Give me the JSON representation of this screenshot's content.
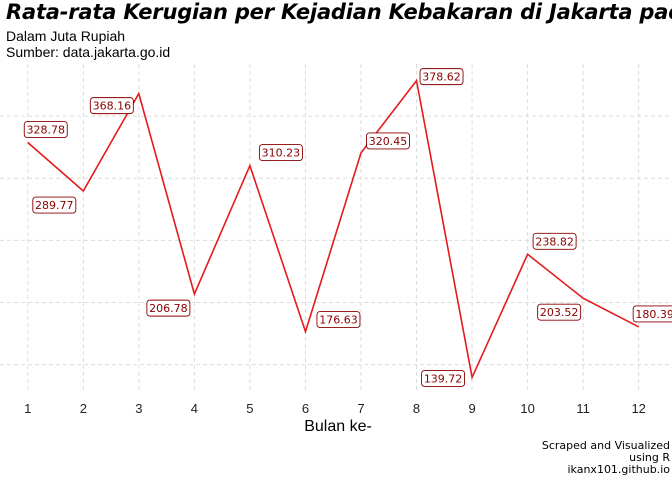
{
  "chart_data": {
    "type": "line",
    "title": "Rata-rata Kerugian per Kejadian Kebakaran di Jakarta pada",
    "subtitle": [
      "Dalam Juta Rupiah",
      "Sumber: data.jakarta.go.id"
    ],
    "xlabel": "Bulan ke-",
    "ylabel": "",
    "x": [
      1,
      2,
      3,
      4,
      5,
      6,
      7,
      8,
      9,
      10,
      11,
      12
    ],
    "series": [
      {
        "values": [
          328.78,
          289.77,
          368.16,
          206.78,
          310.23,
          176.63,
          320.45,
          378.62,
          139.72,
          238.82,
          203.52,
          180.39
        ]
      }
    ],
    "data_labels": [
      "328.78",
      "289.77",
      "368.16",
      "206.78",
      "310.23",
      "176.63",
      "320.45",
      "378.62",
      "139.72",
      "238.82",
      "203.52",
      "180.39"
    ],
    "x_ticks": [
      "1",
      "2",
      "3",
      "4",
      "5",
      "6",
      "7",
      "8",
      "9",
      "10",
      "11",
      "12"
    ],
    "xlim": [
      0.5,
      12.6
    ],
    "ylim": [
      128,
      392
    ],
    "y_gridlines": [
      150,
      200,
      250,
      300,
      350
    ],
    "grid": true,
    "legend": "none",
    "line_color": "#e41a1c",
    "label_text_color": "#8b0000",
    "caption": [
      "Scraped and Visualized",
      "using R",
      "ikanx101.github.io"
    ]
  }
}
